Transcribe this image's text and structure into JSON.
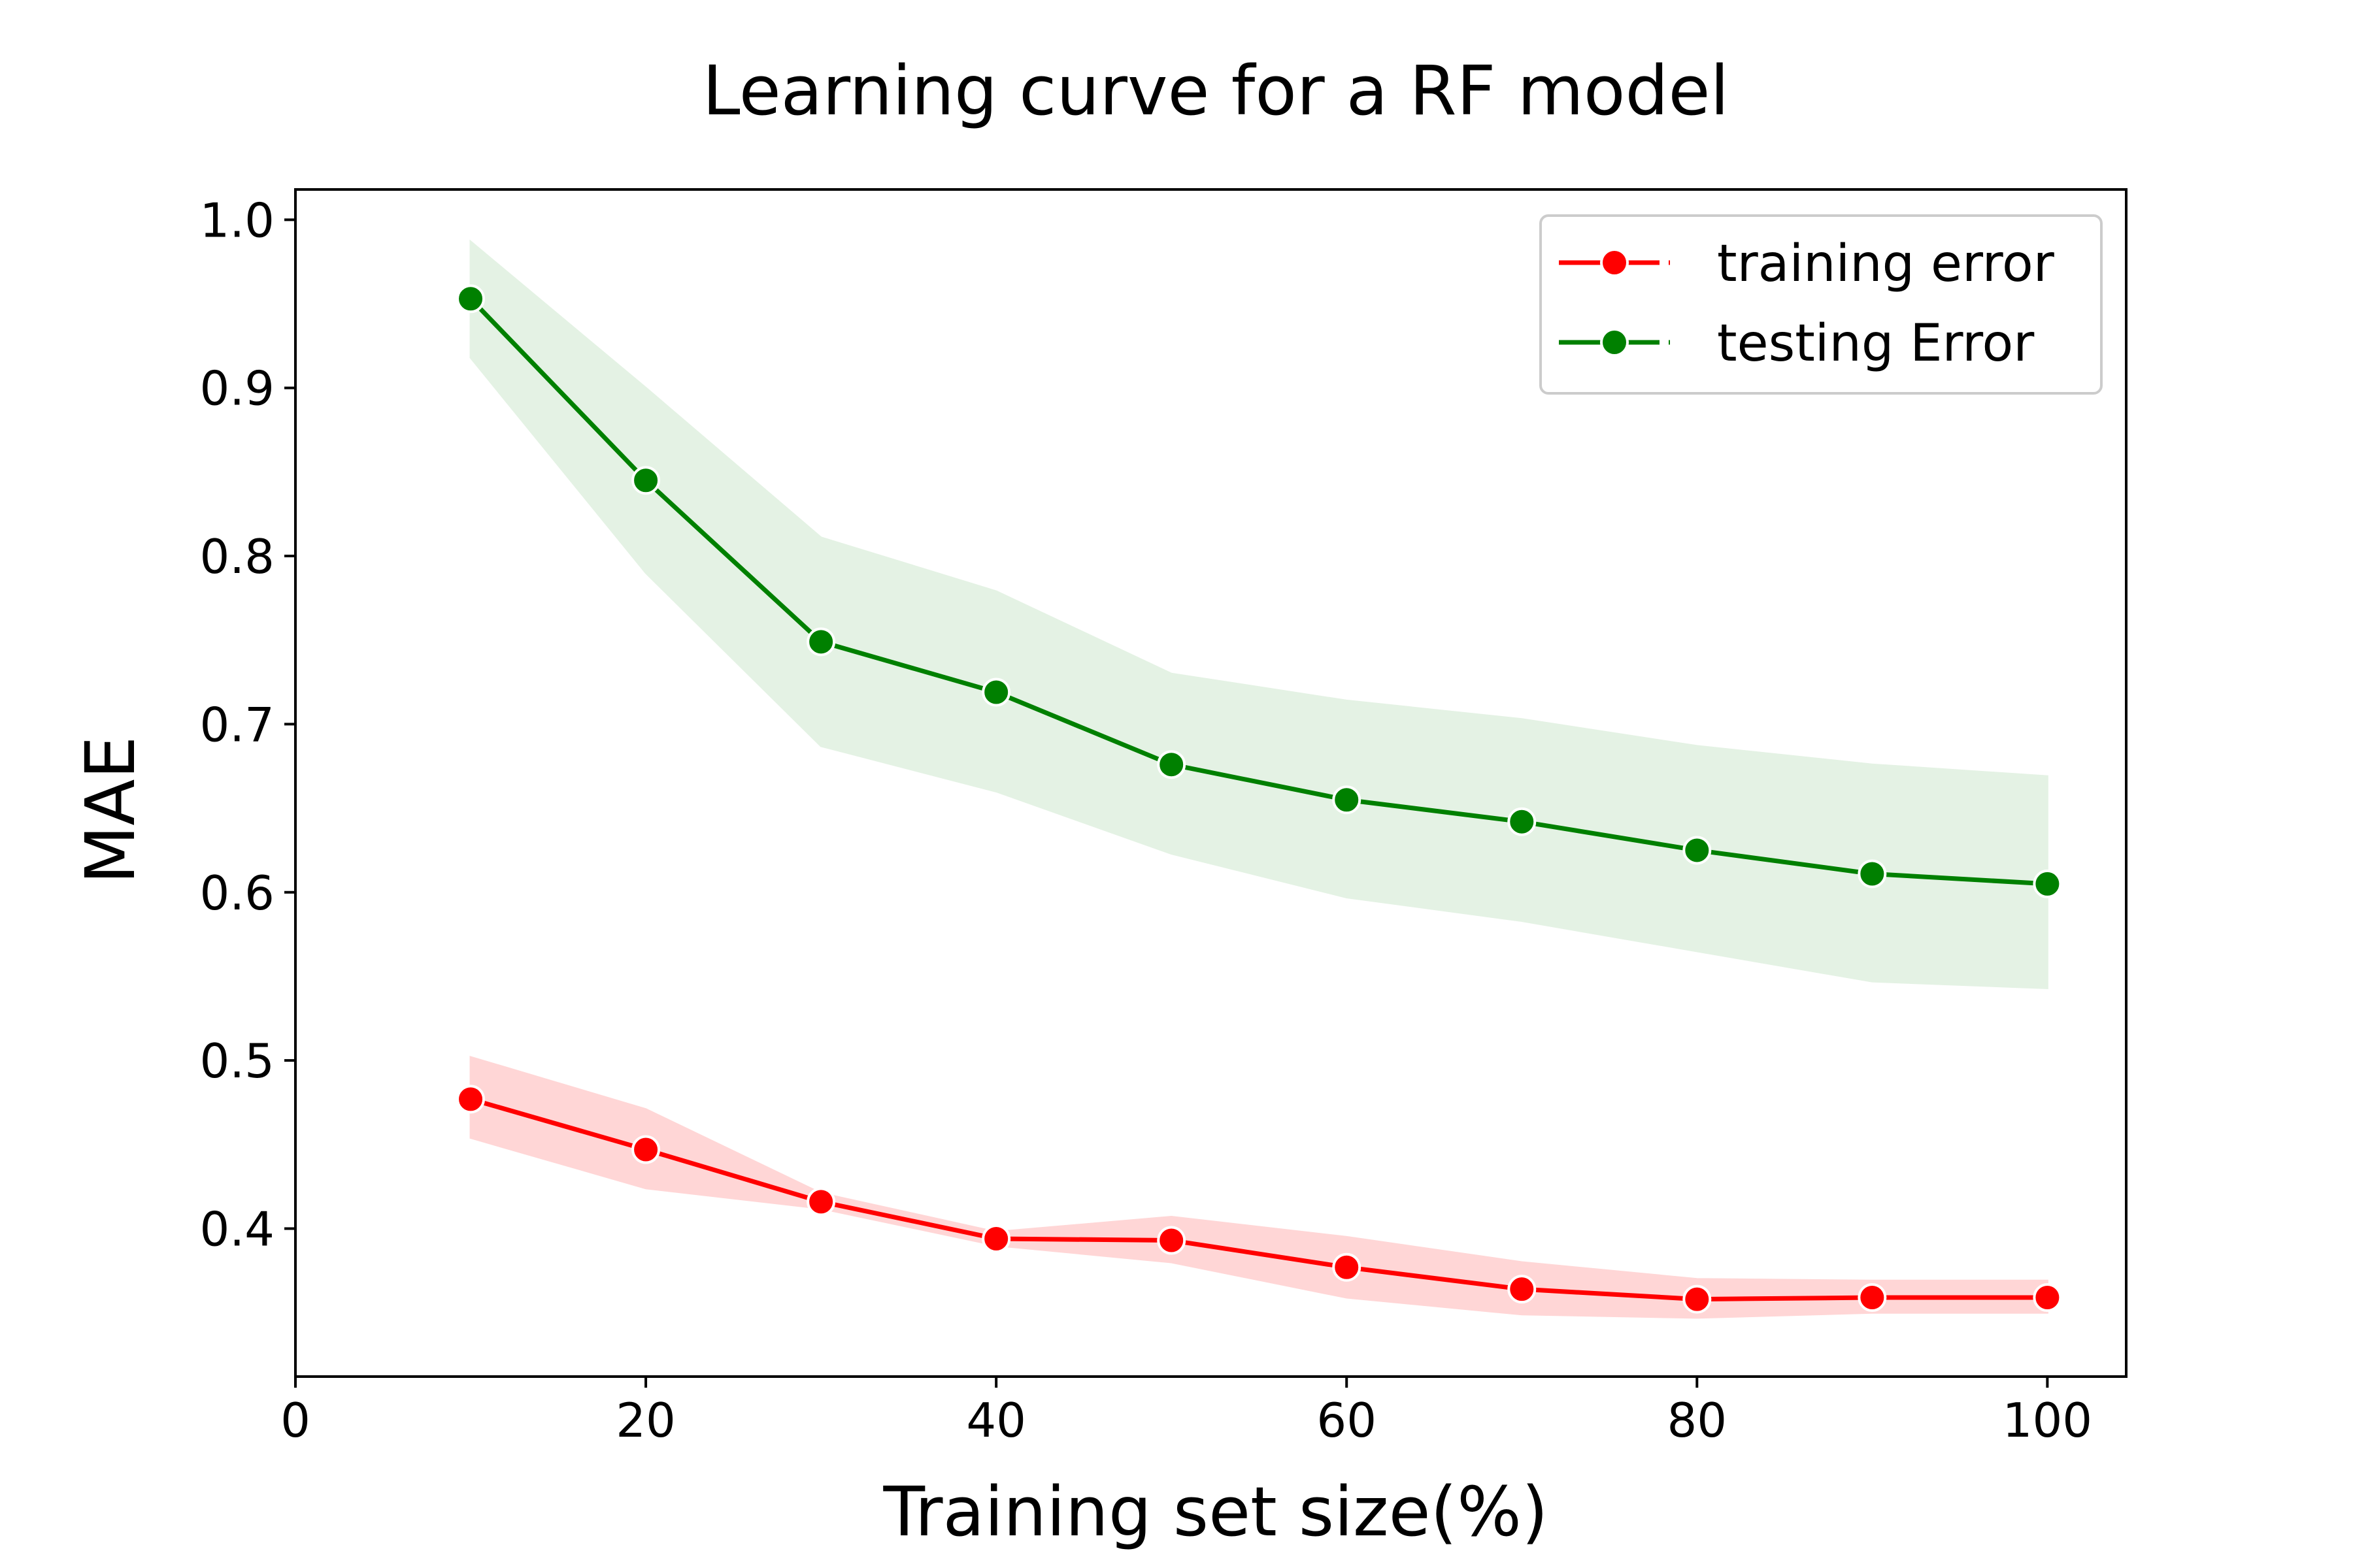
{
  "chart_data": {
    "type": "line",
    "title": "Learning curve for a RF model",
    "xlabel": "Training set size(%)",
    "ylabel": "MAE",
    "xlim": [
      0,
      104.5
    ],
    "ylim": [
      0.312,
      1.018
    ],
    "xticks": [
      0,
      20,
      40,
      60,
      80,
      100
    ],
    "yticks": [
      0.4,
      0.5,
      0.6,
      0.7,
      0.8,
      0.9,
      1.0
    ],
    "xtick_labels": [
      "0",
      "20",
      "40",
      "60",
      "80",
      "100"
    ],
    "ytick_labels": [
      "0.4",
      "0.5",
      "0.6",
      "0.7",
      "0.8",
      "0.9",
      "1.0"
    ],
    "grid": false,
    "legend": "top-right",
    "x": [
      10,
      20,
      30,
      40,
      50,
      60,
      70,
      80,
      90,
      100
    ],
    "series": [
      {
        "name": "training error",
        "color": "#ff0000",
        "band_color": "#ffd6d6",
        "values": [
          0.477,
          0.447,
          0.416,
          0.394,
          0.393,
          0.377,
          0.364,
          0.358,
          0.359,
          0.359
        ],
        "lower": [
          0.454,
          0.424,
          0.412,
          0.39,
          0.38,
          0.359,
          0.349,
          0.347,
          0.35,
          0.35
        ],
        "upper": [
          0.502,
          0.471,
          0.421,
          0.398,
          0.407,
          0.395,
          0.38,
          0.37,
          0.369,
          0.369
        ]
      },
      {
        "name": "testing Error",
        "color": "#008000",
        "band_color": "#e4f2e4",
        "values": [
          0.953,
          0.845,
          0.749,
          0.719,
          0.676,
          0.655,
          0.642,
          0.625,
          0.611,
          0.605
        ],
        "lower": [
          0.918,
          0.79,
          0.687,
          0.66,
          0.623,
          0.597,
          0.583,
          0.565,
          0.547,
          0.543
        ],
        "upper": [
          0.987,
          0.9,
          0.811,
          0.779,
          0.73,
          0.714,
          0.703,
          0.687,
          0.676,
          0.669
        ]
      }
    ]
  }
}
